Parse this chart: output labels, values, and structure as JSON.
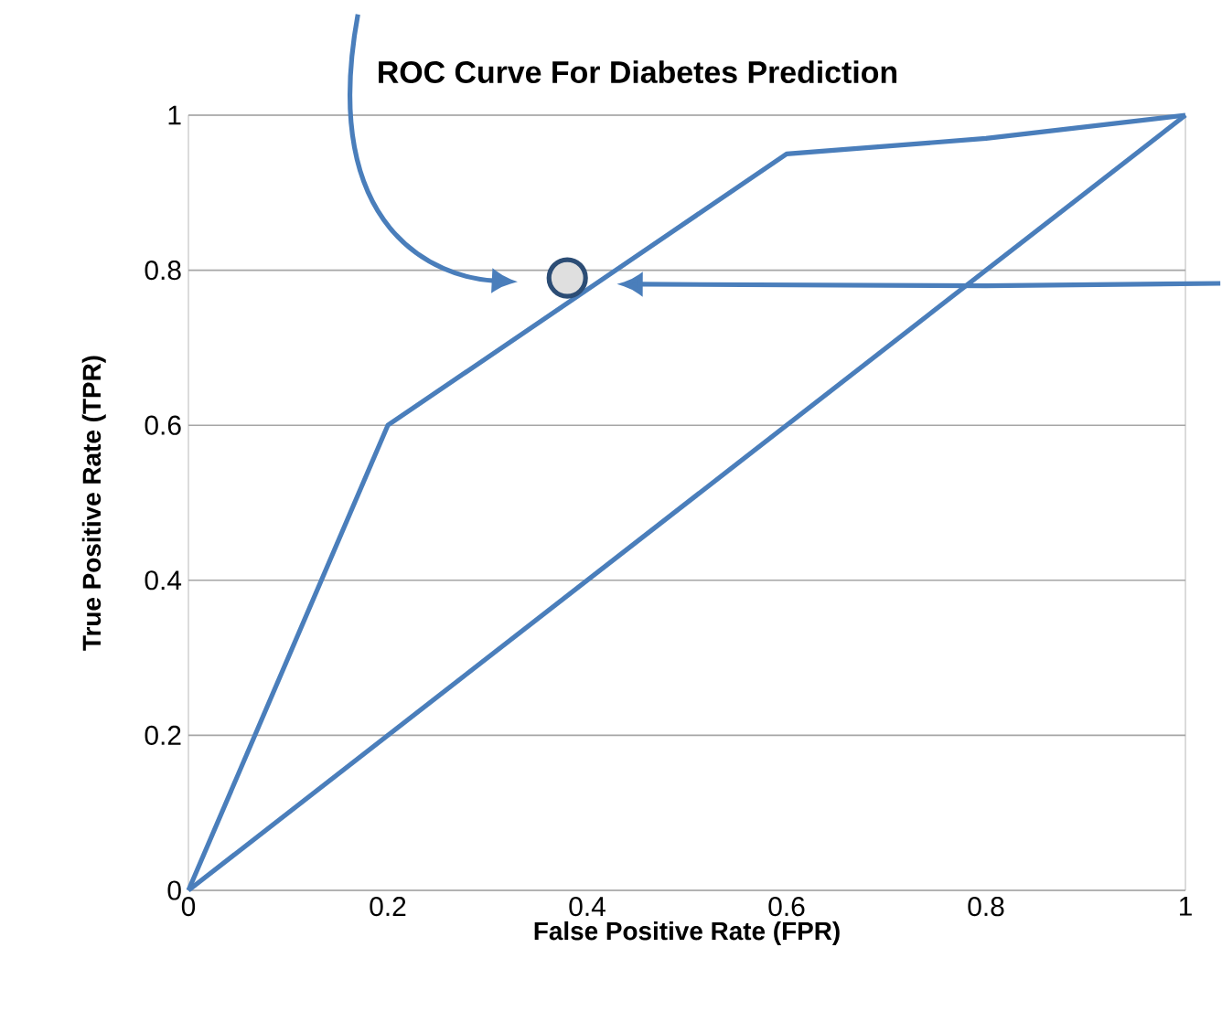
{
  "chart_data": {
    "type": "line",
    "title": "ROC Curve For Diabetes Prediction",
    "xlabel": "False Positive Rate (FPR)",
    "ylabel": "True Positive Rate (TPR)",
    "series": [
      {
        "x": [
          0,
          0.2,
          0.6,
          0.8,
          1
        ],
        "values": [
          0,
          0.6,
          0.95,
          0.97,
          1
        ],
        "color": "#4a7ebb"
      },
      {
        "x": [
          0,
          1
        ],
        "values": [
          0,
          1
        ],
        "color": "#4a7ebb"
      },
      {
        "type": "scatter",
        "x": [
          0.38
        ],
        "values": [
          0.79
        ],
        "color": "#2c4d75",
        "marker": "circle"
      }
    ],
    "xlim": [
      0,
      1
    ],
    "ylim": [
      0,
      1
    ],
    "xticks": [
      0,
      0.2,
      0.4,
      0.6,
      0.8,
      1
    ],
    "yticks": [
      0,
      0.2,
      0.4,
      0.6,
      0.8,
      1
    ],
    "grid": "y",
    "marker": "none",
    "line_style": "solid"
  }
}
